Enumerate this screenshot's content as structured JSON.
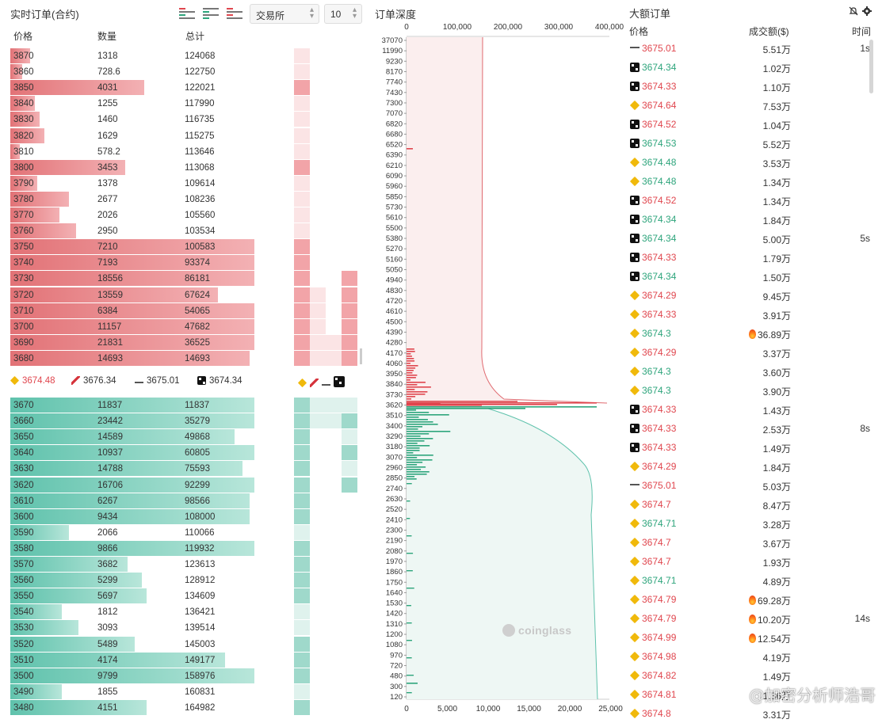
{
  "orderbook": {
    "title": "实时订单(合约)",
    "exchange_select": "交易所",
    "depth_select": "10",
    "columns": {
      "price": "价格",
      "qty": "数量",
      "total": "总计"
    },
    "asks": [
      {
        "price": "3870",
        "qty": "1318",
        "total": "124068",
        "level": 0.08
      },
      {
        "price": "3860",
        "qty": "728.6",
        "total": "122750",
        "level": 0.05
      },
      {
        "price": "3850",
        "qty": "4031",
        "total": "122021",
        "level": 0.55
      },
      {
        "price": "3840",
        "qty": "1255",
        "total": "117990",
        "level": 0.1
      },
      {
        "price": "3830",
        "qty": "1460",
        "total": "116735",
        "level": 0.12
      },
      {
        "price": "3820",
        "qty": "1629",
        "total": "115275",
        "level": 0.14
      },
      {
        "price": "3810",
        "qty": "578.2",
        "total": "113646",
        "level": 0.04
      },
      {
        "price": "3800",
        "qty": "3453",
        "total": "113068",
        "level": 0.47
      },
      {
        "price": "3790",
        "qty": "1378",
        "total": "109614",
        "level": 0.11
      },
      {
        "price": "3780",
        "qty": "2677",
        "total": "108236",
        "level": 0.24
      },
      {
        "price": "3770",
        "qty": "2026",
        "total": "105560",
        "level": 0.2
      },
      {
        "price": "3760",
        "qty": "2950",
        "total": "103534",
        "level": 0.27
      },
      {
        "price": "3750",
        "qty": "7210",
        "total": "100583",
        "level": 1.0
      },
      {
        "price": "3740",
        "qty": "7193",
        "total": "93374",
        "level": 1.0
      },
      {
        "price": "3730",
        "qty": "18556",
        "total": "86181",
        "level": 1.0
      },
      {
        "price": "3720",
        "qty": "13559",
        "total": "67624",
        "level": 0.85
      },
      {
        "price": "3710",
        "qty": "6384",
        "total": "54065",
        "level": 1.0
      },
      {
        "price": "3700",
        "qty": "11157",
        "total": "47682",
        "level": 1.0
      },
      {
        "price": "3690",
        "qty": "21831",
        "total": "36525",
        "level": 1.0
      },
      {
        "price": "3680",
        "qty": "14693",
        "total": "14693",
        "level": 0.98
      }
    ],
    "mid_prices": [
      {
        "exchange": "binance-icon",
        "price": "3674.48",
        "color": "#e0464e"
      },
      {
        "exchange": "bybit-icon",
        "price": "3676.34",
        "color": "#333333"
      },
      {
        "exchange": "bitget-icon",
        "price": "3675.01",
        "color": "#333333"
      },
      {
        "exchange": "okx-icon",
        "price": "3674.34",
        "color": "#333333"
      }
    ],
    "bids": [
      {
        "price": "3670",
        "qty": "11837",
        "total": "11837",
        "level": 1.0
      },
      {
        "price": "3660",
        "qty": "23442",
        "total": "35279",
        "level": 1.0
      },
      {
        "price": "3650",
        "qty": "14589",
        "total": "49868",
        "level": 0.92
      },
      {
        "price": "3640",
        "qty": "10937",
        "total": "60805",
        "level": 1.0
      },
      {
        "price": "3630",
        "qty": "14788",
        "total": "75593",
        "level": 0.95
      },
      {
        "price": "3620",
        "qty": "16706",
        "total": "92299",
        "level": 1.0
      },
      {
        "price": "3610",
        "qty": "6267",
        "total": "98566",
        "level": 0.98
      },
      {
        "price": "3600",
        "qty": "9434",
        "total": "108000",
        "level": 0.98
      },
      {
        "price": "3590",
        "qty": "2066",
        "total": "110066",
        "level": 0.24
      },
      {
        "price": "3580",
        "qty": "9866",
        "total": "119932",
        "level": 1.0
      },
      {
        "price": "3570",
        "qty": "3682",
        "total": "123613",
        "level": 0.48
      },
      {
        "price": "3560",
        "qty": "5299",
        "total": "128912",
        "level": 0.54
      },
      {
        "price": "3550",
        "qty": "5697",
        "total": "134609",
        "level": 0.56
      },
      {
        "price": "3540",
        "qty": "1812",
        "total": "136421",
        "level": 0.21
      },
      {
        "price": "3530",
        "qty": "3093",
        "total": "139514",
        "level": 0.28
      },
      {
        "price": "3520",
        "qty": "5489",
        "total": "145003",
        "level": 0.51
      },
      {
        "price": "3510",
        "qty": "4174",
        "total": "149177",
        "level": 0.88
      },
      {
        "price": "3500",
        "qty": "9799",
        "total": "158976",
        "level": 1.0
      },
      {
        "price": "3490",
        "qty": "1855",
        "total": "160831",
        "level": 0.21
      },
      {
        "price": "3480",
        "qty": "4151",
        "total": "164982",
        "level": 0.56
      }
    ]
  },
  "depth": {
    "title": "订单深度",
    "watermark": "coinglass",
    "top_axis": [
      "0",
      "100,000",
      "200,000",
      "300,000",
      "400,000"
    ],
    "bottom_axis": [
      "0",
      "5,000",
      "10,000",
      "15,000",
      "20,000",
      "25,000"
    ],
    "price_labels": [
      "37070",
      "11990",
      "9230",
      "8170",
      "7740",
      "7430",
      "7300",
      "7070",
      "6820",
      "6680",
      "6520",
      "6390",
      "6210",
      "6090",
      "5960",
      "5850",
      "5730",
      "5610",
      "5500",
      "5380",
      "5270",
      "5160",
      "5050",
      "4940",
      "4830",
      "4720",
      "4610",
      "4500",
      "4390",
      "4280",
      "4170",
      "4060",
      "3950",
      "3840",
      "3730",
      "3620",
      "3510",
      "3400",
      "3290",
      "3180",
      "3070",
      "2960",
      "2850",
      "2740",
      "2630",
      "2520",
      "2410",
      "2300",
      "2190",
      "2080",
      "1970",
      "1860",
      "1750",
      "1640",
      "1530",
      "1420",
      "1310",
      "1200",
      "1080",
      "970",
      "720",
      "480",
      "300",
      "120"
    ]
  },
  "large_orders": {
    "title": "大额订单",
    "columns": {
      "price": "价格",
      "amount": "成交额($)",
      "time": "时间"
    },
    "rows": [
      {
        "ex": "bitget-icon",
        "price": "3675.01",
        "side": "dn",
        "amount": "5.51万",
        "fire": false,
        "time": "1s"
      },
      {
        "ex": "okx-icon",
        "price": "3674.34",
        "side": "up",
        "amount": "1.02万",
        "fire": false,
        "time": ""
      },
      {
        "ex": "okx-icon",
        "price": "3674.33",
        "side": "dn",
        "amount": "1.10万",
        "fire": false,
        "time": ""
      },
      {
        "ex": "binance-icon",
        "price": "3674.64",
        "side": "dn",
        "amount": "7.53万",
        "fire": false,
        "time": ""
      },
      {
        "ex": "okx-icon",
        "price": "3674.52",
        "side": "dn",
        "amount": "1.04万",
        "fire": false,
        "time": ""
      },
      {
        "ex": "okx-icon",
        "price": "3674.53",
        "side": "up",
        "amount": "5.52万",
        "fire": false,
        "time": ""
      },
      {
        "ex": "binance-icon",
        "price": "3674.48",
        "side": "up",
        "amount": "3.53万",
        "fire": false,
        "time": ""
      },
      {
        "ex": "binance-icon",
        "price": "3674.48",
        "side": "up",
        "amount": "1.34万",
        "fire": false,
        "time": ""
      },
      {
        "ex": "okx-icon",
        "price": "3674.52",
        "side": "dn",
        "amount": "1.34万",
        "fire": false,
        "time": ""
      },
      {
        "ex": "okx-icon",
        "price": "3674.34",
        "side": "up",
        "amount": "1.84万",
        "fire": false,
        "time": ""
      },
      {
        "ex": "okx-icon",
        "price": "3674.34",
        "side": "up",
        "amount": "5.00万",
        "fire": false,
        "time": "5s"
      },
      {
        "ex": "okx-icon",
        "price": "3674.33",
        "side": "dn",
        "amount": "1.79万",
        "fire": false,
        "time": ""
      },
      {
        "ex": "okx-icon",
        "price": "3674.34",
        "side": "up",
        "amount": "1.50万",
        "fire": false,
        "time": ""
      },
      {
        "ex": "binance-icon",
        "price": "3674.29",
        "side": "dn",
        "amount": "9.45万",
        "fire": false,
        "time": ""
      },
      {
        "ex": "binance-icon",
        "price": "3674.33",
        "side": "dn",
        "amount": "3.91万",
        "fire": false,
        "time": ""
      },
      {
        "ex": "binance-icon",
        "price": "3674.3",
        "side": "up",
        "amount": "36.89万",
        "fire": true,
        "time": ""
      },
      {
        "ex": "binance-icon",
        "price": "3674.29",
        "side": "dn",
        "amount": "3.37万",
        "fire": false,
        "time": ""
      },
      {
        "ex": "binance-icon",
        "price": "3674.3",
        "side": "up",
        "amount": "3.60万",
        "fire": false,
        "time": ""
      },
      {
        "ex": "binance-icon",
        "price": "3674.3",
        "side": "up",
        "amount": "3.90万",
        "fire": false,
        "time": ""
      },
      {
        "ex": "okx-icon",
        "price": "3674.33",
        "side": "dn",
        "amount": "1.43万",
        "fire": false,
        "time": ""
      },
      {
        "ex": "okx-icon",
        "price": "3674.33",
        "side": "dn",
        "amount": "2.53万",
        "fire": false,
        "time": "8s"
      },
      {
        "ex": "okx-icon",
        "price": "3674.33",
        "side": "dn",
        "amount": "1.49万",
        "fire": false,
        "time": ""
      },
      {
        "ex": "binance-icon",
        "price": "3674.29",
        "side": "dn",
        "amount": "1.84万",
        "fire": false,
        "time": ""
      },
      {
        "ex": "bitget-icon",
        "price": "3675.01",
        "side": "dn",
        "amount": "5.03万",
        "fire": false,
        "time": ""
      },
      {
        "ex": "binance-icon",
        "price": "3674.7",
        "side": "dn",
        "amount": "8.47万",
        "fire": false,
        "time": ""
      },
      {
        "ex": "binance-icon",
        "price": "3674.71",
        "side": "up",
        "amount": "3.28万",
        "fire": false,
        "time": ""
      },
      {
        "ex": "binance-icon",
        "price": "3674.7",
        "side": "dn",
        "amount": "3.67万",
        "fire": false,
        "time": ""
      },
      {
        "ex": "binance-icon",
        "price": "3674.7",
        "side": "dn",
        "amount": "1.93万",
        "fire": false,
        "time": ""
      },
      {
        "ex": "binance-icon",
        "price": "3674.71",
        "side": "up",
        "amount": "4.89万",
        "fire": false,
        "time": ""
      },
      {
        "ex": "binance-icon",
        "price": "3674.79",
        "side": "dn",
        "amount": "69.28万",
        "fire": true,
        "time": ""
      },
      {
        "ex": "binance-icon",
        "price": "3674.79",
        "side": "dn",
        "amount": "10.20万",
        "fire": true,
        "time": "14s"
      },
      {
        "ex": "binance-icon",
        "price": "3674.99",
        "side": "dn",
        "amount": "12.54万",
        "fire": true,
        "time": ""
      },
      {
        "ex": "binance-icon",
        "price": "3674.98",
        "side": "dn",
        "amount": "4.19万",
        "fire": false,
        "time": ""
      },
      {
        "ex": "binance-icon",
        "price": "3674.82",
        "side": "dn",
        "amount": "1.49万",
        "fire": false,
        "time": ""
      },
      {
        "ex": "binance-icon",
        "price": "3674.81",
        "side": "dn",
        "amount": "1.36万",
        "fire": false,
        "time": ""
      },
      {
        "ex": "binance-icon",
        "price": "3674.8",
        "side": "dn",
        "amount": "3.31万",
        "fire": false,
        "time": ""
      }
    ]
  },
  "footer_watermark": "@加密分析师浩哥",
  "colors": {
    "up": "#2ea57c",
    "down": "#e0464e",
    "ask_bar": "#e27276",
    "bid_bar": "#5fc2ac"
  }
}
